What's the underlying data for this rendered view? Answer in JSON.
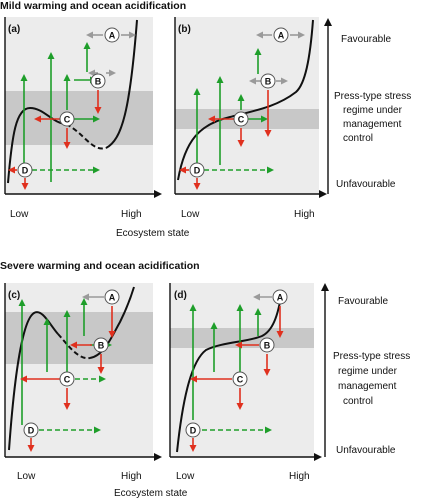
{
  "headings": {
    "top": "Mild warming and ocean acidification",
    "bottom": "Severe warming and ocean acidification"
  },
  "panels": {
    "a": "(a)",
    "b": "(b)",
    "c": "(c)",
    "d": "(d)"
  },
  "axis": {
    "low": "Low",
    "high": "High",
    "x_title": "Ecosystem state"
  },
  "right_labels": {
    "favourable": "Favourable",
    "regime_lines": [
      "Press-type stress",
      "regime under",
      "management",
      "control"
    ],
    "unfavourable": "Unfavourable"
  },
  "nodes": {
    "A": "A",
    "B": "B",
    "C": "C",
    "D": "D"
  },
  "colors": {
    "green": "#1e9e2a",
    "red": "#e0301e",
    "grey_arrow": "#9a9a9a",
    "band": "#c8c8c8",
    "panel_bg": "#ececec"
  }
}
